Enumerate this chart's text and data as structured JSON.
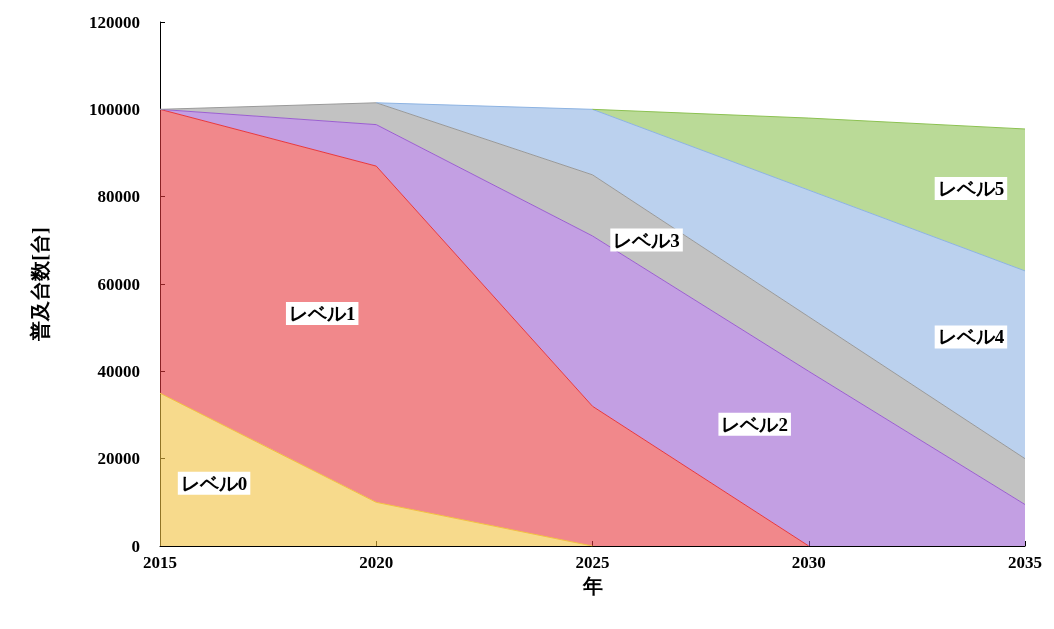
{
  "chart_data": {
    "type": "area",
    "stacked": true,
    "xlabel": "年",
    "ylabel": "普及台数[台]",
    "x": [
      2015,
      2020,
      2025,
      2030,
      2035
    ],
    "xlim": [
      2015,
      2035
    ],
    "xticks": [
      2015,
      2020,
      2025,
      2030,
      2035
    ],
    "ylim": [
      0,
      120000
    ],
    "yticks": [
      0,
      20000,
      40000,
      60000,
      80000,
      100000,
      120000
    ],
    "grid": false,
    "legend": false,
    "series": [
      {
        "name": "レベル0",
        "color": "#f2c140",
        "values": [
          35000,
          10000,
          0,
          null,
          null
        ]
      },
      {
        "name": "レベル1",
        "color": "#e8383d",
        "values": [
          65000,
          77000,
          32000,
          0,
          null
        ]
      },
      {
        "name": "レベル2",
        "color": "#9b5fd0",
        "values": [
          0,
          9500,
          39000,
          40000,
          9500
        ]
      },
      {
        "name": "レベル3",
        "color": "#9a9a9a",
        "values": [
          0,
          5000,
          14000,
          12500,
          10500
        ]
      },
      {
        "name": "レベル4",
        "color": "#8db3e2",
        "values": [
          null,
          0,
          15000,
          29000,
          43000
        ]
      },
      {
        "name": "レベル5",
        "color": "#8cc152",
        "values": [
          null,
          null,
          0,
          16500,
          32500
        ]
      }
    ]
  }
}
